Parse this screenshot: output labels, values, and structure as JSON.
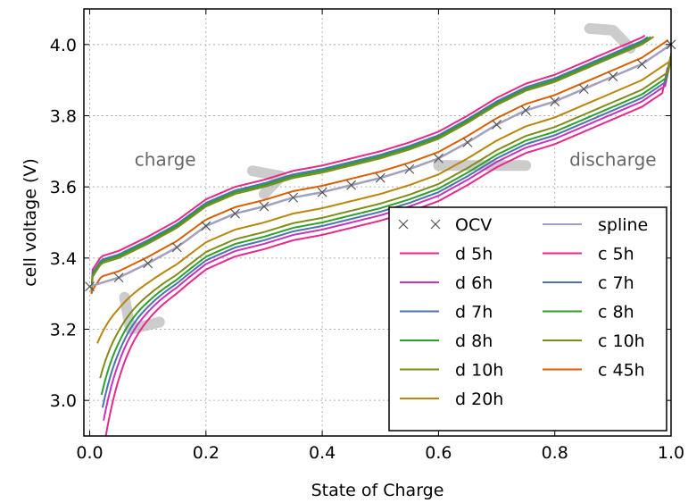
{
  "chart_data": {
    "type": "line",
    "xlabel": "State of Charge",
    "ylabel": "cell voltage (V)",
    "xlim": [
      -0.01,
      1.0
    ],
    "ylim": [
      2.9,
      4.1
    ],
    "xticks": [
      "0.0",
      "0.2",
      "0.4",
      "0.6",
      "0.8",
      "1.0"
    ],
    "yticks": [
      "3.0",
      "3.2",
      "3.4",
      "3.6",
      "3.8",
      "4.0"
    ],
    "grid": true,
    "legend_position": "lower-right",
    "annotations": [
      {
        "text": "charge",
        "x": 0.13,
        "y": 3.66
      },
      {
        "text": "discharge",
        "x": 0.9,
        "y": 3.66
      }
    ],
    "ocv": {
      "name": "OCV",
      "marker": "x",
      "color": "#555555",
      "x": [
        0.0,
        0.05,
        0.1,
        0.15,
        0.2,
        0.25,
        0.3,
        0.35,
        0.4,
        0.45,
        0.5,
        0.55,
        0.6,
        0.65,
        0.7,
        0.75,
        0.8,
        0.85,
        0.9,
        0.95,
        1.0
      ],
      "y": [
        3.32,
        3.345,
        3.385,
        3.43,
        3.49,
        3.525,
        3.545,
        3.57,
        3.585,
        3.605,
        3.625,
        3.65,
        3.68,
        3.725,
        3.775,
        3.815,
        3.84,
        3.875,
        3.91,
        3.945,
        4.0
      ]
    },
    "spline": {
      "name": "spline",
      "color": "#a0a0c0"
    },
    "series": [
      {
        "name": "d 5h",
        "color": "#e7298a",
        "mode": "discharge",
        "x_end": 0.985,
        "offset": -0.12
      },
      {
        "name": "d 6h",
        "color": "#c733c0",
        "mode": "discharge",
        "x_end": 0.99,
        "offset": -0.105
      },
      {
        "name": "d 7h",
        "color": "#4c72b0",
        "mode": "discharge",
        "x_end": 0.99,
        "offset": -0.095
      },
      {
        "name": "d 8h",
        "color": "#2ca02c",
        "mode": "discharge",
        "x_end": 0.992,
        "offset": -0.085
      },
      {
        "name": "d 10h",
        "color": "#7f8c1a",
        "mode": "discharge",
        "x_end": 0.995,
        "offset": -0.072
      },
      {
        "name": "d 20h",
        "color": "#b8860b",
        "mode": "discharge",
        "x_end": 0.998,
        "offset": -0.045
      },
      {
        "name": "c 5h",
        "color": "#e7298a",
        "mode": "charge",
        "x_end": 0.955,
        "offset": 0.075
      },
      {
        "name": "c 7h",
        "color": "#4c72b0",
        "mode": "charge",
        "x_end": 0.96,
        "offset": 0.065
      },
      {
        "name": "c 8h",
        "color": "#2ca02c",
        "mode": "charge",
        "x_end": 0.965,
        "offset": 0.06
      },
      {
        "name": "c 10h",
        "color": "#7f8c1a",
        "mode": "charge",
        "x_end": 0.97,
        "offset": 0.055
      },
      {
        "name": "c 45h",
        "color": "#d95f02",
        "mode": "charge",
        "x_end": 0.995,
        "offset": 0.018
      }
    ],
    "legend": [
      [
        "OCV",
        "spline"
      ],
      [
        "d 5h",
        "c 5h"
      ],
      [
        "d 6h",
        "c 7h"
      ],
      [
        "d 7h",
        "c 8h"
      ],
      [
        "d 8h",
        "c 10h"
      ],
      [
        "d 10h",
        "c 45h"
      ],
      [
        "d 20h",
        ""
      ]
    ]
  }
}
